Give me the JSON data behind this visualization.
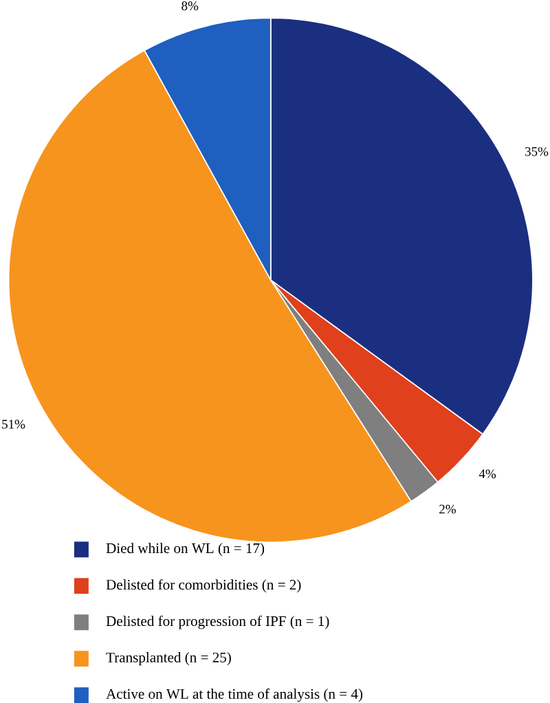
{
  "chart_data": {
    "type": "pie",
    "categories": [
      "Died while on WL (n = 17)",
      "Delisted for comorbidities (n = 2)",
      "Delisted for progression of IPF (n = 1)",
      "Transplanted (n = 25)",
      "Active on WL at the time of analysis (n = 4)"
    ],
    "values": [
      35,
      4,
      2,
      51,
      8
    ],
    "colors": [
      "#1b2f80",
      "#e0401c",
      "#7f7f7f",
      "#f7941d",
      "#1f5fbf"
    ],
    "value_labels": [
      "35%",
      "4%",
      "2%",
      "51%",
      "8%"
    ],
    "legend": "bottom"
  }
}
